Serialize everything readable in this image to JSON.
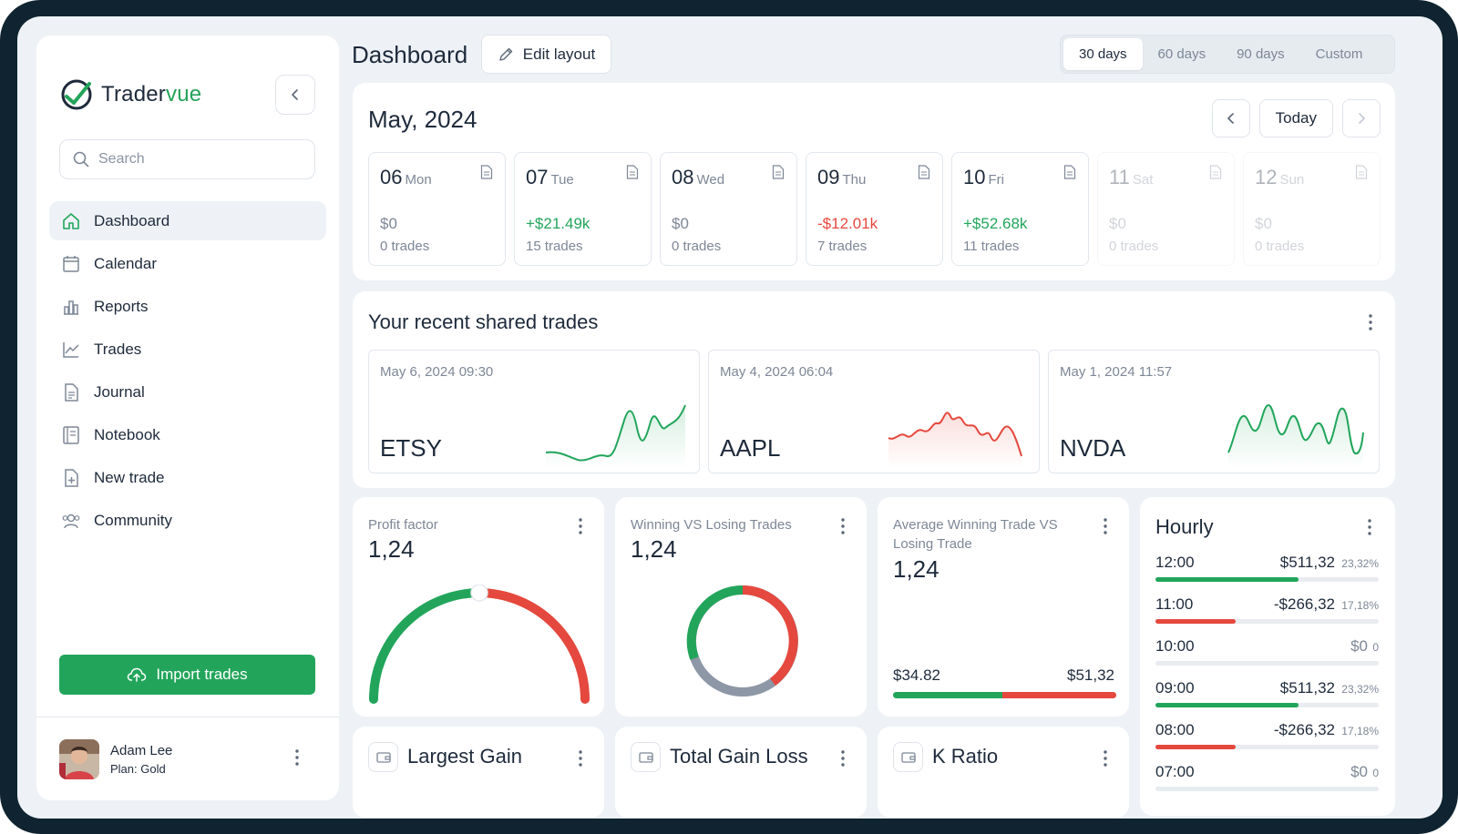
{
  "brand": {
    "name_part1": "Trader",
    "name_part2": "vue",
    "accent": "#24a35a"
  },
  "search": {
    "placeholder": "Search"
  },
  "sidebar": {
    "items": [
      {
        "label": "Dashboard",
        "icon": "home-icon",
        "active": true
      },
      {
        "label": "Calendar",
        "icon": "calendar-icon"
      },
      {
        "label": "Reports",
        "icon": "bar-chart-icon"
      },
      {
        "label": "Trades",
        "icon": "line-chart-icon"
      },
      {
        "label": "Journal",
        "icon": "document-icon"
      },
      {
        "label": "Notebook",
        "icon": "notebook-icon"
      },
      {
        "label": "New trade",
        "icon": "file-plus-icon"
      },
      {
        "label": "Community",
        "icon": "users-icon"
      }
    ],
    "import_label": "Import trades",
    "user": {
      "name": "Adam Lee",
      "plan": "Plan: Gold"
    }
  },
  "header": {
    "title": "Dashboard",
    "edit_label": "Edit layout",
    "ranges": [
      "30 days",
      "60 days",
      "90 days",
      "Custom"
    ],
    "active_range": "30 days"
  },
  "calendar": {
    "title": "May, 2024",
    "today_label": "Today",
    "days": [
      {
        "num": "06",
        "name": "Mon",
        "value": "$0",
        "trades": "0 trades",
        "tone": "zero"
      },
      {
        "num": "07",
        "name": "Tue",
        "value": "+$21.49k",
        "trades": "15 trades",
        "tone": "pos"
      },
      {
        "num": "08",
        "name": "Wed",
        "value": "$0",
        "trades": "0 trades",
        "tone": "zero"
      },
      {
        "num": "09",
        "name": "Thu",
        "value": "-$12.01k",
        "trades": "7 trades",
        "tone": "neg"
      },
      {
        "num": "10",
        "name": "Fri",
        "value": "+$52.68k",
        "trades": "11 trades",
        "tone": "pos"
      },
      {
        "num": "11",
        "name": "Sat",
        "value": "$0",
        "trades": "0 trades",
        "tone": "faded"
      },
      {
        "num": "12",
        "name": "Sun",
        "value": "$0",
        "trades": "0 trades",
        "tone": "faded"
      }
    ]
  },
  "shared_trades": {
    "title": "Your recent shared trades",
    "items": [
      {
        "date": "May 6, 2024 09:30",
        "symbol": "ETSY",
        "color": "#22a55b"
      },
      {
        "date": "May 4, 2024 06:04",
        "symbol": "AAPL",
        "color": "#e5483e"
      },
      {
        "date": "May 1, 2024 11:57",
        "symbol": "NVDA",
        "color": "#22a55b"
      }
    ]
  },
  "profit_factor": {
    "title": "Profit factor",
    "value": "1,24"
  },
  "win_loss": {
    "title": "Winning VS Losing Trades",
    "value": "1,24"
  },
  "avg_trade": {
    "title": "Average Winning Trade VS Losing Trade",
    "value": "1,24",
    "win": "$34.82",
    "loss": "$51,32"
  },
  "hourly": {
    "title": "Hourly",
    "rows": [
      {
        "time": "12:00",
        "amount": "$511,32",
        "pct": "23,32%",
        "tone": "pos",
        "fill": 0.64
      },
      {
        "time": "11:00",
        "amount": "-$266,32",
        "pct": "17,18%",
        "tone": "neg",
        "fill": 0.36
      },
      {
        "time": "10:00",
        "amount": "$0",
        "pct": "0",
        "tone": "zero",
        "fill": 0
      },
      {
        "time": "09:00",
        "amount": "$511,32",
        "pct": "23,32%",
        "tone": "pos",
        "fill": 0.64
      },
      {
        "time": "08:00",
        "amount": "-$266,32",
        "pct": "17,18%",
        "tone": "neg",
        "fill": 0.36
      },
      {
        "time": "07:00",
        "amount": "$0",
        "pct": "0",
        "tone": "zero",
        "fill": 0
      }
    ]
  },
  "bottom": {
    "largest_gain": "Largest Gain",
    "total_gain_loss": "Total Gain Loss",
    "k_ratio": "K Ratio"
  },
  "colors": {
    "green": "#22a55b",
    "red": "#e5483e",
    "gray": "#8e97a6"
  }
}
